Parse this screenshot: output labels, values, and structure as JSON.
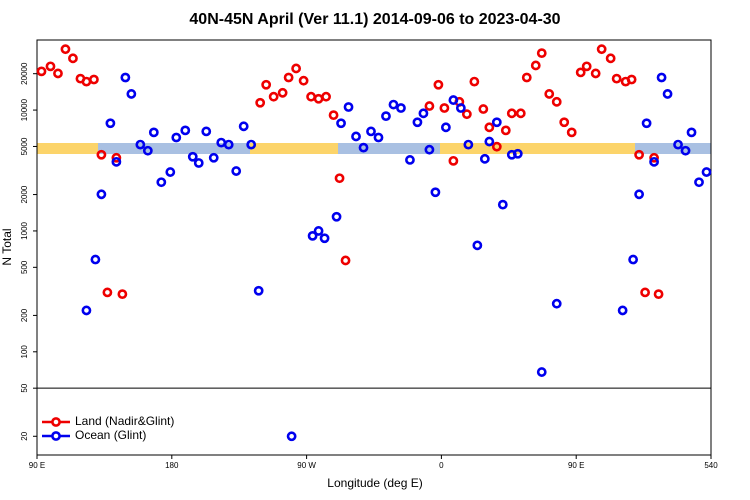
{
  "chart_data": {
    "type": "scatter",
    "title": "40N-45N April (Ver 11.1)   2014-09-06 to 2023-04-30",
    "x_label": "Longitude (deg E)",
    "y_label": "N Total",
    "log_y": true,
    "xlim": [
      90,
      540
    ],
    "ylim": [
      14,
      38000
    ],
    "xticks": [
      {
        "value": 90,
        "label": "90 E"
      },
      180,
      {
        "value": 270,
        "label": "90 W"
      },
      {
        "value": 360,
        "label": "0"
      },
      {
        "value": 450,
        "label": "90 E"
      },
      540
    ],
    "yticks": [
      20000,
      10000,
      5000,
      2000,
      1000,
      500,
      200,
      100,
      50,
      20
    ],
    "divider": 50,
    "legend": "bottom-left",
    "series": [
      {
        "name": "Land (Nadir&Glint)",
        "color": "#ee0000",
        "x": [
          93,
          99,
          104,
          109,
          114,
          119,
          123,
          128,
          133,
          137,
          143,
          147,
          239,
          243,
          248,
          254,
          258,
          263,
          268,
          273,
          278,
          283,
          288,
          292,
          296,
          352,
          358,
          362,
          368,
          372,
          377,
          382,
          388,
          392,
          397,
          403,
          407,
          413,
          417,
          423,
          427,
          432,
          437,
          442,
          447,
          453,
          457,
          463,
          467,
          473,
          477,
          483,
          487,
          492,
          496,
          502,
          505
        ],
        "values": [
          20900,
          23000,
          20100,
          31900,
          26800,
          18200,
          17200,
          17900,
          4270,
          310,
          4030,
          300,
          11500,
          16200,
          12900,
          13900,
          18600,
          22100,
          17500,
          12900,
          12400,
          12900,
          9080,
          2730,
          570,
          10800,
          16200,
          10400,
          3800,
          11700,
          9250,
          17200,
          10200,
          7200,
          4980,
          6790,
          9400,
          9400,
          18600,
          23400,
          29600,
          13600,
          11700,
          7930,
          6540,
          20500,
          23000,
          20100,
          31900,
          26800,
          18200,
          17200,
          17900,
          4270,
          310,
          4030,
          300
        ]
      },
      {
        "name": "Ocean (Glint)",
        "color": "#0000ee",
        "x": [
          123,
          129,
          133,
          139,
          143,
          149,
          153,
          159,
          164,
          168,
          173,
          179,
          183,
          189,
          194,
          198,
          203,
          208,
          213,
          218,
          223,
          228,
          233,
          238,
          260,
          274,
          278,
          282,
          290,
          293,
          298,
          303,
          308,
          313,
          318,
          323,
          328,
          333,
          339,
          344,
          348,
          352,
          356,
          363,
          368,
          373,
          378,
          384,
          389,
          392,
          397,
          401,
          407,
          411,
          427,
          437,
          481,
          488,
          492,
          497,
          502,
          507,
          511,
          518,
          523,
          527,
          532,
          537
        ],
        "values": [
          220,
          580,
          2010,
          7780,
          3730,
          18600,
          13600,
          5180,
          4610,
          6540,
          2530,
          3070,
          5930,
          6790,
          4110,
          3650,
          6660,
          4030,
          5380,
          5180,
          3130,
          7340,
          5180,
          320,
          20,
          910,
          1000,
          870,
          1310,
          7780,
          10600,
          6050,
          4890,
          6660,
          5930,
          8910,
          11100,
          10400,
          3870,
          7930,
          9400,
          4700,
          2090,
          7200,
          12100,
          10400,
          5180,
          760,
          3950,
          5490,
          7930,
          1650,
          4270,
          4350,
          68,
          250,
          220,
          580,
          2010,
          7780,
          3730,
          18600,
          13600,
          5180,
          4610,
          6540,
          2530,
          3070
        ]
      }
    ]
  }
}
